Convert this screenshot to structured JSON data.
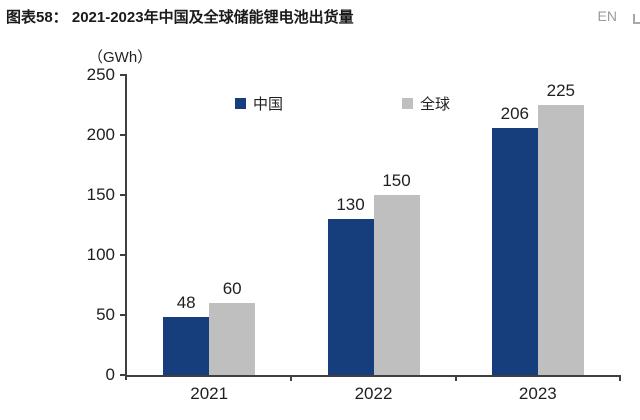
{
  "header": {
    "title": "图表58： 2021-2023年中国及全球储能锂电池出货量",
    "lang_toggle": "EN"
  },
  "chart_data": {
    "type": "bar",
    "title": "2021-2023年中国及全球储能锂电池出货量",
    "unit_label": "（GWh）",
    "categories": [
      "2021",
      "2022",
      "2023"
    ],
    "series": [
      {
        "name": "中国",
        "slug": "china",
        "color": "#163E7C",
        "values": [
          48,
          130,
          206
        ]
      },
      {
        "name": "全球",
        "slug": "global",
        "color": "#BFBFBF",
        "values": [
          60,
          150,
          225
        ]
      }
    ],
    "xlabel": "",
    "ylabel": "GWh",
    "ylim": [
      0,
      250
    ],
    "yticks": [
      0,
      50,
      100,
      150,
      200,
      250
    ],
    "legend_position": "top-inside",
    "grid": false,
    "bar_value_labels": true
  },
  "colors": {
    "axis": "#3F3F3F",
    "text": "#1F1F1F",
    "title": "#1A1A1A",
    "muted": "#9B9B9B",
    "background": "#FFFFFF"
  }
}
